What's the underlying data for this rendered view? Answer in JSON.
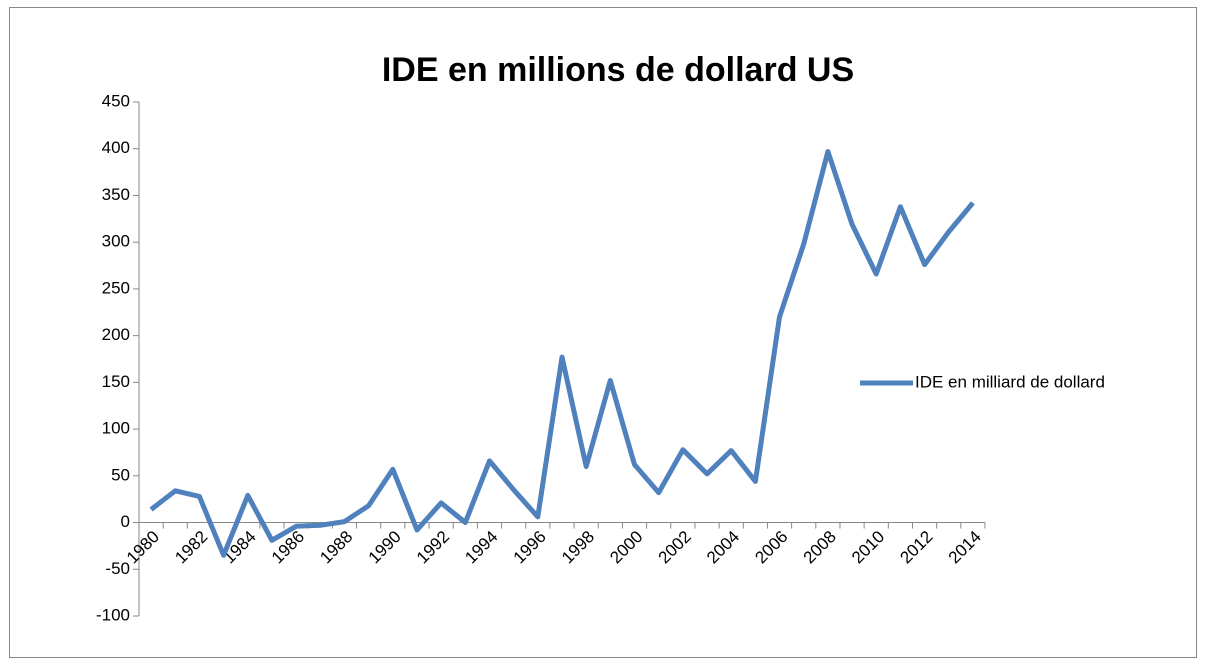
{
  "chart_data": {
    "type": "line",
    "title": "IDE en millions de dollard US",
    "categories": [
      "1980",
      null,
      "1982",
      null,
      "1984",
      null,
      "1986",
      null,
      "1988",
      null,
      "1990",
      null,
      "1992",
      null,
      "1994",
      null,
      "1996",
      null,
      "1998",
      null,
      "2000",
      null,
      "2002",
      null,
      "2004",
      null,
      "2006",
      null,
      "2008",
      null,
      "2010",
      null,
      "2012",
      null,
      "2014"
    ],
    "series": [
      {
        "name": "IDE en milliard de dollard",
        "color": "#4f81bd",
        "values": [
          14,
          34,
          28,
          -35,
          29,
          -19,
          -4,
          -3,
          1,
          18,
          57,
          -8,
          21,
          0,
          66,
          35,
          6,
          177,
          60,
          152,
          62,
          32,
          78,
          52,
          77,
          44,
          220,
          298,
          397,
          319,
          266,
          338,
          276,
          311,
          342
        ]
      }
    ],
    "ylim": [
      -100,
      450
    ],
    "yticks": [
      -100,
      -50,
      0,
      50,
      100,
      150,
      200,
      250,
      300,
      350,
      400,
      450
    ],
    "legend": "right"
  }
}
